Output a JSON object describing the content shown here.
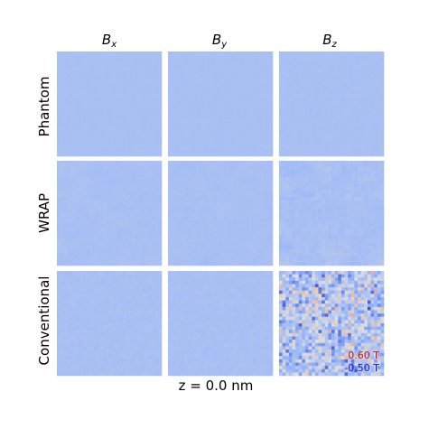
{
  "chart_data": {
    "type": "heatmap",
    "columns": [
      {
        "base": "B",
        "sub": "x"
      },
      {
        "base": "B",
        "sub": "y"
      },
      {
        "base": "B",
        "sub": "z"
      }
    ],
    "rows": [
      "Phantom",
      "WRAP",
      "Conventional"
    ],
    "xlabel": "z = 0.0 nm",
    "scale": {
      "max_label": "0.60 T",
      "min_label": "-0.50 T",
      "max_color": "#cc1111",
      "min_color": "#1a1aaa",
      "vmin": -0.5,
      "vmax": 0.6
    },
    "colormap": "coolwarm",
    "panel_fields": [
      [
        "near-zero uniform",
        "near-zero uniform",
        "near-zero uniform"
      ],
      [
        "weak structured noise",
        "weak structured noise",
        "moderate structured noise"
      ],
      [
        "weak fine noise",
        "weak fine noise",
        "strong random noise"
      ]
    ]
  }
}
